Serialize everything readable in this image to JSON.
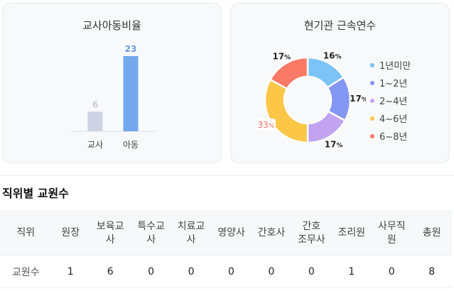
{
  "teacher_child_ratio": {
    "title": "교사아동비율",
    "chart_data": {
      "type": "bar",
      "categories": [
        "교사",
        "아동"
      ],
      "values": [
        6,
        23
      ],
      "colors": [
        "#cdd3e2",
        "#73a8ec"
      ],
      "label_colors": [
        "#c7cbd6",
        "#6a9be2"
      ]
    }
  },
  "tenure": {
    "title": "현기관 근속연수",
    "chart_data": {
      "type": "pie",
      "categories": [
        "1년미만",
        "1~2년",
        "2~4년",
        "4~6년",
        "6~8년"
      ],
      "values": [
        16,
        17,
        17,
        33,
        17
      ],
      "value_labels": [
        "16",
        "17",
        "17",
        "33",
        "17"
      ],
      "unit": "%",
      "colors": [
        "#7cc3f7",
        "#8597f4",
        "#c1a3f2",
        "#fcc647",
        "#fa7a66"
      ]
    }
  },
  "staff_by_position": {
    "title": "직위별 교원수",
    "header_label": "직위",
    "row_label": "교원수",
    "columns": [
      {
        "label": "원장",
        "value": "1"
      },
      {
        "label": "보육교사",
        "value": "6"
      },
      {
        "label": "특수교사",
        "value": "0"
      },
      {
        "label": "치료교사",
        "value": "0"
      },
      {
        "label": "영양사",
        "value": "0"
      },
      {
        "label": "간호사",
        "value": "0"
      },
      {
        "label": "간호조무사",
        "value": "0"
      },
      {
        "label": "조리원",
        "value": "1"
      },
      {
        "label": "사무직원",
        "value": "0"
      },
      {
        "label": "총원",
        "value": "8"
      }
    ]
  }
}
